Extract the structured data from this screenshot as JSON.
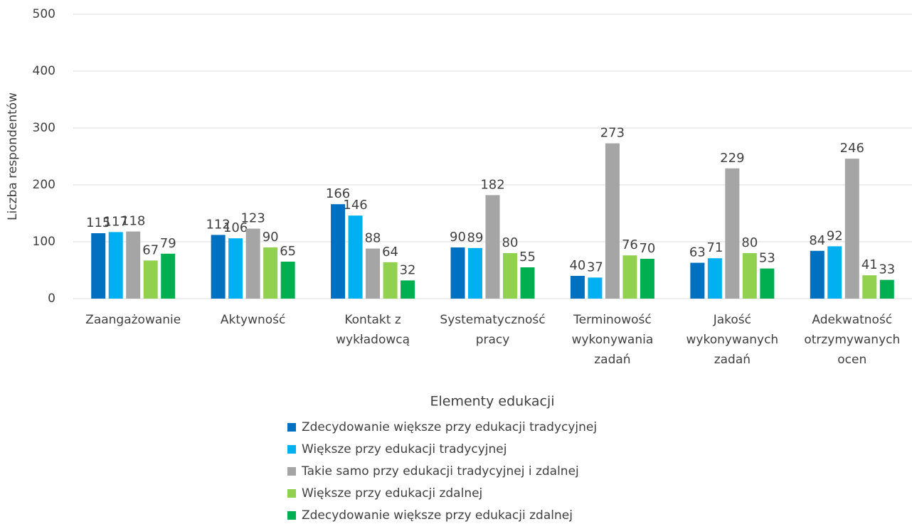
{
  "chart_data": {
    "type": "bar",
    "y_label": "Liczba respondentów",
    "x_label": "Elementy edukacji",
    "categories": [
      [
        "Zaangażowanie"
      ],
      [
        "Aktywność"
      ],
      [
        "Kontakt z",
        "wykładowcą"
      ],
      [
        "Systematyczność",
        "pracy"
      ],
      [
        "Terminowość",
        "wykonywania",
        "zadań"
      ],
      [
        "Jakość",
        "wykonywanych",
        "zadań"
      ],
      [
        "Adekwatność",
        "otrzymywanych",
        "ocen"
      ]
    ],
    "series": [
      {
        "name": "Zdecydowanie większe przy edukacji tradycyjnej",
        "color": "#0070c0",
        "values": [
          115,
          112,
          166,
          90,
          40,
          63,
          84
        ]
      },
      {
        "name": "Większe przy edukacji tradycyjnej",
        "color": "#00b0f0",
        "values": [
          117,
          106,
          146,
          89,
          37,
          71,
          92
        ]
      },
      {
        "name": "Takie samo przy edukacji tradycyjnej i zdalnej",
        "color": "#a5a5a5",
        "values": [
          118,
          123,
          88,
          182,
          273,
          229,
          246
        ]
      },
      {
        "name": "Większe przy edukacji zdalnej",
        "color": "#92d050",
        "values": [
          67,
          90,
          64,
          80,
          76,
          80,
          41
        ]
      },
      {
        "name": "Zdecydowanie większe przy edukacji zdalnej",
        "color": "#00b050",
        "values": [
          79,
          65,
          32,
          55,
          70,
          53,
          33
        ]
      }
    ],
    "ylim": [
      0,
      500
    ],
    "yticks": [
      0,
      100,
      200,
      300,
      400,
      500
    ],
    "grid": true,
    "legend": "bottom"
  }
}
